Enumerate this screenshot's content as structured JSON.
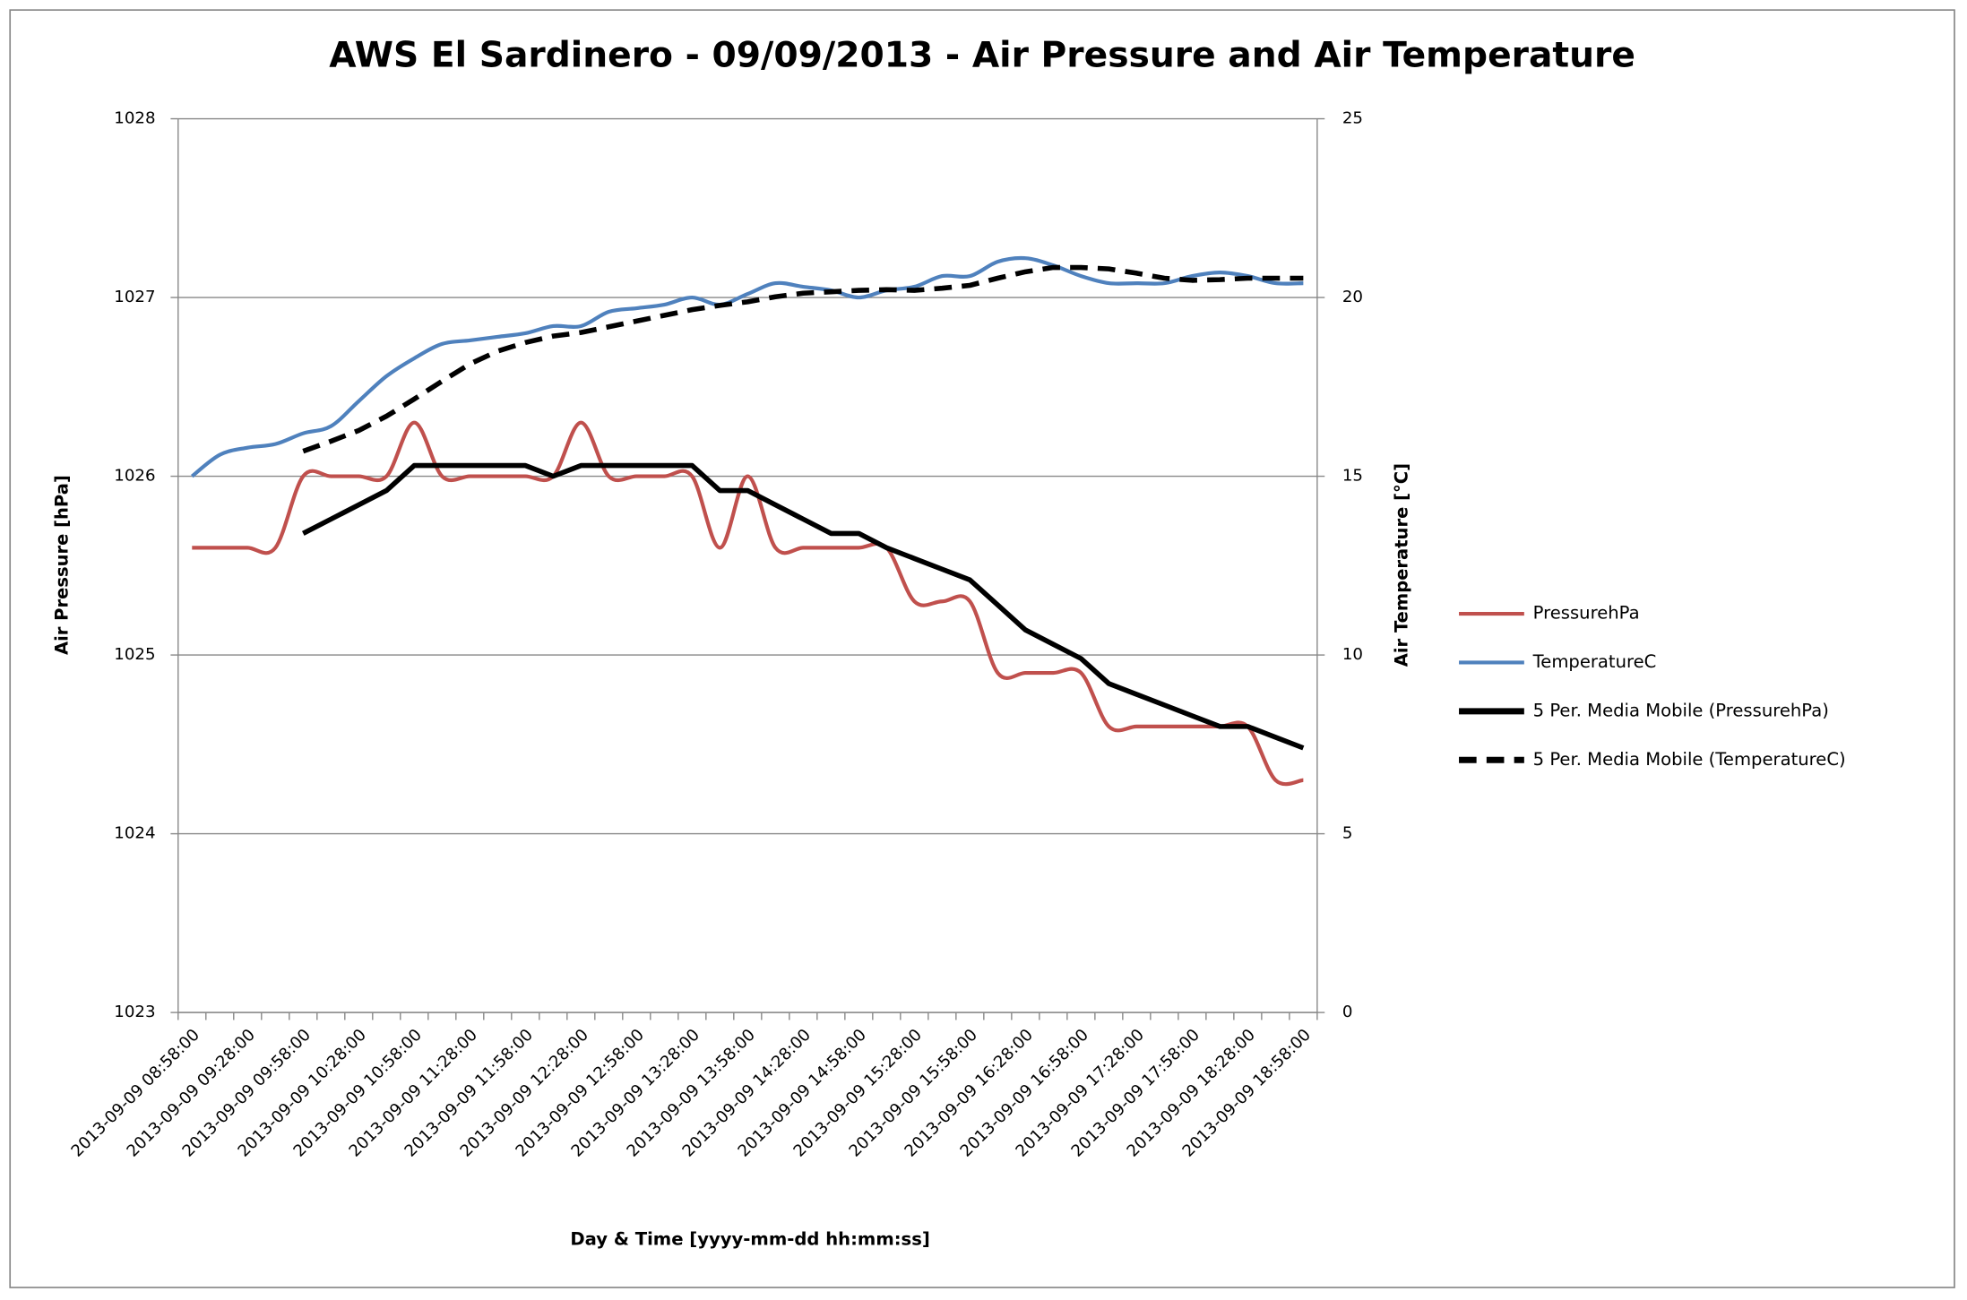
{
  "chart_data": {
    "type": "line",
    "title": "AWS El Sardinero - 09/09/2013 - Air Pressure and Air Temperature",
    "x_label": "Day & Time [yyyy-mm-dd  hh:mm:ss]",
    "y_label": "Air Pressure [hPa]",
    "y2_label": "Air Temperature [°C]",
    "categories": [
      "2013-09-09 08:58:00",
      null,
      "2013-09-09 09:28:00",
      null,
      "2013-09-09 09:58:00",
      null,
      "2013-09-09 10:28:00",
      null,
      "2013-09-09 10:58:00",
      null,
      "2013-09-09 11:28:00",
      null,
      "2013-09-09 11:58:00",
      null,
      "2013-09-09 12:28:00",
      null,
      "2013-09-09 12:58:00",
      null,
      "2013-09-09 13:28:00",
      null,
      "2013-09-09 13:58:00",
      null,
      "2013-09-09 14:28:00",
      null,
      "2013-09-09 14:58:00",
      null,
      "2013-09-09 15:28:00",
      null,
      "2013-09-09 15:58:00",
      null,
      "2013-09-09 16:28:00",
      null,
      "2013-09-09 16:58:00",
      null,
      "2013-09-09 17:28:00",
      null,
      "2013-09-09 17:58:00",
      null,
      "2013-09-09 18:28:00",
      null,
      "2013-09-09 18:58:00"
    ],
    "series": [
      {
        "name": "PressurehPa",
        "color": "#c0504d",
        "axis": "y",
        "smooth": true,
        "dash": false,
        "values": [
          1025.6,
          1025.6,
          1025.6,
          1025.6,
          1026.0,
          1026.0,
          1026.0,
          1026.0,
          1026.3,
          1026.0,
          1026.0,
          1026.0,
          1026.0,
          1026.0,
          1026.3,
          1026.0,
          1026.0,
          1026.0,
          1026.0,
          1025.6,
          1026.0,
          1025.6,
          1025.6,
          1025.6,
          1025.6,
          1025.6,
          1025.3,
          1025.3,
          1025.3,
          1024.9,
          1024.9,
          1024.9,
          1024.9,
          1024.6,
          1024.6,
          1024.6,
          1024.6,
          1024.6,
          1024.6,
          1024.3,
          1024.3
        ]
      },
      {
        "name": "TemperatureC",
        "color": "#4f81bd",
        "axis": "y2",
        "smooth": true,
        "dash": false,
        "values": [
          15.0,
          15.6,
          15.8,
          15.9,
          16.2,
          16.4,
          17.1,
          17.8,
          18.3,
          18.7,
          18.8,
          18.9,
          19.0,
          19.2,
          19.2,
          19.6,
          19.7,
          19.8,
          20.0,
          19.8,
          20.1,
          20.4,
          20.3,
          20.2,
          20.0,
          20.2,
          20.3,
          20.6,
          20.6,
          21.0,
          21.1,
          20.9,
          20.6,
          20.4,
          20.4,
          20.4,
          20.6,
          20.7,
          20.6,
          20.4,
          20.4
        ]
      },
      {
        "name": "5 Per. Media Mobile (PressurehPa)",
        "color": "#000000",
        "axis": "y",
        "smooth": false,
        "dash": false,
        "values": [
          null,
          null,
          null,
          null,
          1025.68,
          1025.76,
          1025.84,
          1025.92,
          1026.06,
          1026.06,
          1026.06,
          1026.06,
          1026.06,
          1026.0,
          1026.06,
          1026.06,
          1026.06,
          1026.06,
          1026.06,
          1025.92,
          1025.92,
          1025.84,
          1025.76,
          1025.68,
          1025.68,
          1025.6,
          1025.54,
          1025.48,
          1025.42,
          1025.28,
          1025.14,
          1025.06,
          1024.98,
          1024.84,
          1024.78,
          1024.72,
          1024.66,
          1024.6,
          1024.6,
          1024.54,
          1024.48
        ]
      },
      {
        "name": "5 Per. Media Mobile (TemperatureC)",
        "color": "#000000",
        "axis": "y2",
        "smooth": false,
        "dash": true,
        "values": [
          null,
          null,
          null,
          null,
          15.7,
          15.98,
          16.28,
          16.68,
          17.16,
          17.66,
          18.14,
          18.5,
          18.74,
          18.92,
          19.02,
          19.18,
          19.34,
          19.5,
          19.66,
          19.78,
          19.88,
          20.02,
          20.12,
          20.16,
          20.2,
          20.22,
          20.2,
          20.26,
          20.34,
          20.54,
          20.72,
          20.84,
          20.84,
          20.8,
          20.68,
          20.54,
          20.48,
          20.5,
          20.54,
          20.54,
          20.54
        ]
      }
    ],
    "ylim": [
      1023,
      1028
    ],
    "yticks": [
      1023,
      1024,
      1025,
      1026,
      1027,
      1028
    ],
    "y2lim": [
      0,
      25
    ],
    "y2ticks": [
      0,
      5,
      10,
      15,
      20,
      25
    ],
    "grid": true,
    "legend": "right"
  }
}
